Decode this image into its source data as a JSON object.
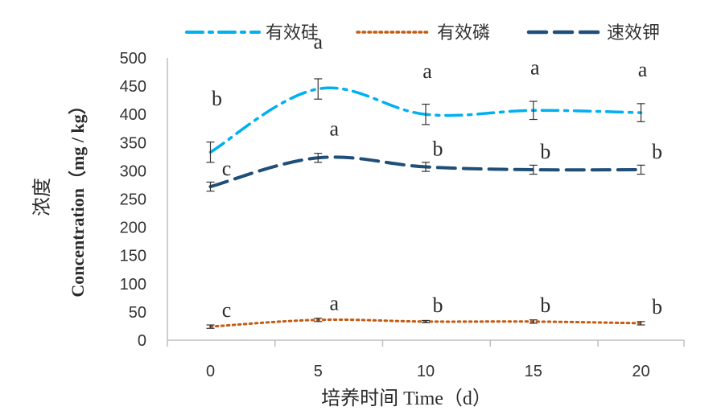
{
  "chart_data": {
    "type": "line",
    "title": "",
    "xlabel": "培养时间 Time（d）",
    "ylabel_cn": "浓度",
    "ylabel_en": "Concentration（mg / kg）",
    "x": [
      0,
      5,
      10,
      15,
      20
    ],
    "xticks": [
      "0",
      "5",
      "10",
      "15",
      "20"
    ],
    "xlim": [
      -2,
      22
    ],
    "ylim": [
      0,
      500
    ],
    "yticks": [
      0,
      50,
      100,
      150,
      200,
      250,
      300,
      350,
      400,
      450,
      500
    ],
    "grid": false,
    "legend_position": "top",
    "series": [
      {
        "name": "有效硅",
        "values": [
          333,
          445,
          400,
          407,
          403
        ],
        "errors": [
          18,
          18,
          18,
          16,
          16
        ],
        "letters": [
          "b",
          "a",
          "a",
          "a",
          "a"
        ],
        "color": "#00b0f0",
        "dash": "dash-dot"
      },
      {
        "name": "有效磷",
        "values": [
          24,
          36,
          33,
          33,
          30
        ],
        "errors": [
          3,
          3,
          2,
          3,
          3
        ],
        "letters": [
          "c",
          "a",
          "b",
          "b",
          "b"
        ],
        "color": "#c55a11",
        "dash": "dot"
      },
      {
        "name": "速效钾",
        "values": [
          272,
          323,
          307,
          302,
          302
        ],
        "errors": [
          8,
          8,
          8,
          8,
          8
        ],
        "letters": [
          "c",
          "a",
          "b",
          "b",
          "b"
        ],
        "color": "#1f4e79",
        "dash": "long-dash"
      }
    ]
  }
}
